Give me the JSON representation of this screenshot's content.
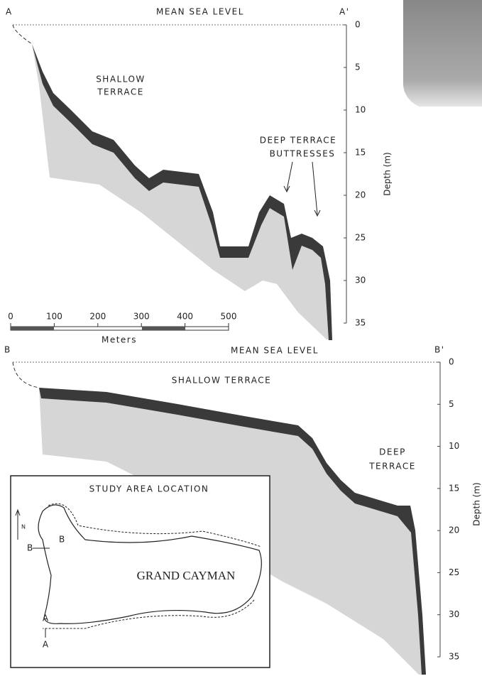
{
  "profile_a": {
    "start_label": "A",
    "end_label": "A'",
    "sea_level_label": "MEAN SEA LEVEL",
    "depth_axis_label": "Depth (m)",
    "depth_ticks": [
      0,
      5,
      10,
      15,
      20,
      25,
      30,
      35
    ],
    "annotations": [
      {
        "lines": [
          "SHALLOW",
          "TERRACE"
        ]
      },
      {
        "lines": [
          "DEEP TERRACE",
          "BUTTRESSES"
        ]
      }
    ],
    "scale_bar": {
      "ticks": [
        0,
        100,
        200,
        300,
        400,
        500
      ],
      "unit": "Meters"
    }
  },
  "profile_b": {
    "start_label": "B",
    "end_label": "B'",
    "sea_level_label": "MEAN SEA LEVEL",
    "depth_axis_label": "Depth (m)",
    "depth_ticks": [
      0,
      5,
      10,
      15,
      20,
      25,
      30,
      35
    ],
    "annotations": [
      {
        "lines": [
          "SHALLOW TERRACE"
        ]
      },
      {
        "lines": [
          "DEEP",
          "TERRACE"
        ]
      }
    ]
  },
  "inset": {
    "title": "STUDY AREA LOCATION",
    "island_label": "GRAND CAYMAN",
    "north_label": "N",
    "transect_labels": [
      "B",
      "B",
      "A",
      "A"
    ]
  }
}
